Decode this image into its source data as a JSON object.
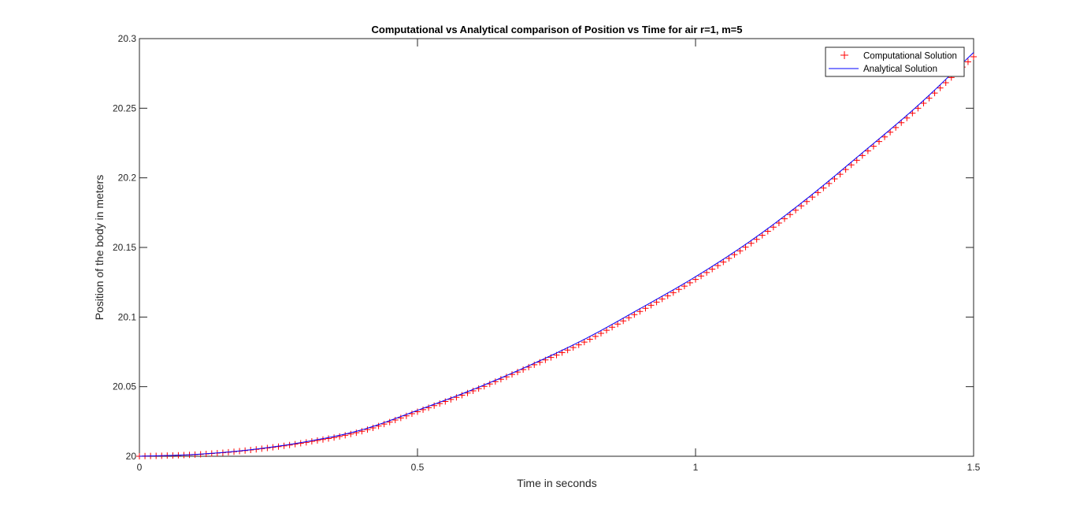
{
  "chart_data": {
    "type": "line",
    "title": "Computational vs Analytical comparison of Position vs Time for air r=1, m=5",
    "xlabel": "Time in seconds",
    "ylabel": "Position of the body in meters",
    "xlim": [
      0,
      1.5
    ],
    "ylim": [
      20,
      20.3
    ],
    "xticks": [
      0,
      0.5,
      1,
      1.5
    ],
    "xtick_labels": [
      "0",
      "0.5",
      "1",
      "1.5"
    ],
    "yticks": [
      20,
      20.05,
      20.1,
      20.15,
      20.2,
      20.25,
      20.3
    ],
    "ytick_labels": [
      "20",
      "20.05",
      "20.1",
      "20.15",
      "20.2",
      "20.25",
      "20.3"
    ],
    "grid": false,
    "legend_position": "top-right",
    "x": [
      0,
      0.1,
      0.2,
      0.3,
      0.4,
      0.5,
      0.6,
      0.7,
      0.8,
      0.9,
      1.0,
      1.1,
      1.2,
      1.3,
      1.4,
      1.5
    ],
    "series": [
      {
        "name": "Computational Solution",
        "style": "marker",
        "marker": "+",
        "color": "#ff0000",
        "values": [
          20.0,
          20.0012,
          20.0045,
          20.01,
          20.018,
          20.032,
          20.047,
          20.064,
          20.082,
          20.104,
          20.127,
          20.153,
          20.183,
          20.216,
          20.25,
          20.287
        ]
      },
      {
        "name": "Analytical Solution",
        "style": "line",
        "color": "#0000ff",
        "values": [
          20.0,
          20.0013,
          20.0047,
          20.0105,
          20.019,
          20.033,
          20.048,
          20.065,
          20.084,
          20.106,
          20.129,
          20.155,
          20.185,
          20.218,
          20.252,
          20.29
        ]
      }
    ]
  }
}
